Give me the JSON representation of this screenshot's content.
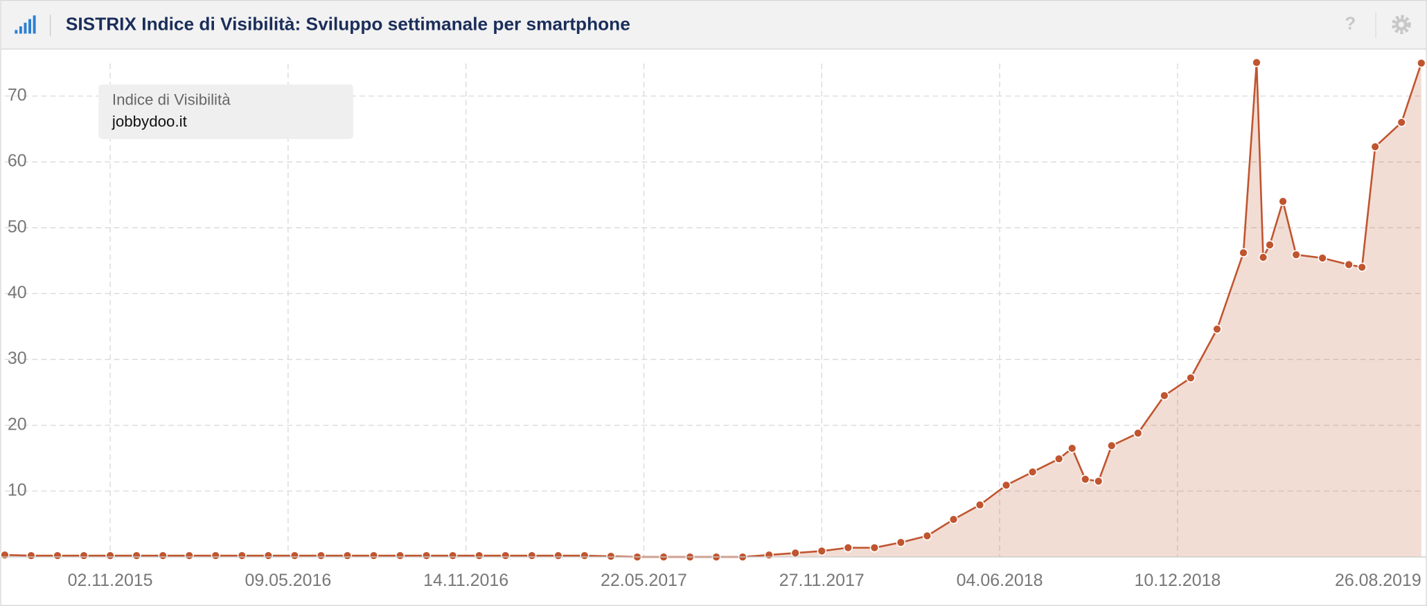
{
  "header": {
    "title": "SISTRIX Indice di Visibilità: Sviluppo settimanale per smartphone",
    "help": "?"
  },
  "chart_data": {
    "type": "area",
    "legend_title": "Indice di Visibilità",
    "x": [
      "13.07.2015",
      "10.08.2015",
      "07.09.2015",
      "05.10.2015",
      "02.11.2015",
      "30.11.2015",
      "28.12.2015",
      "25.01.2016",
      "22.02.2016",
      "21.03.2016",
      "18.04.2016",
      "16.05.2016",
      "13.06.2016",
      "11.07.2016",
      "08.08.2016",
      "05.09.2016",
      "03.10.2016",
      "31.10.2016",
      "28.11.2016",
      "26.12.2016",
      "23.01.2017",
      "20.02.2017",
      "20.03.2017",
      "17.04.2017",
      "15.05.2017",
      "12.06.2017",
      "10.07.2017",
      "07.08.2017",
      "04.09.2017",
      "02.10.2017",
      "30.10.2017",
      "27.11.2017",
      "25.12.2017",
      "22.01.2018",
      "19.02.2018",
      "19.03.2018",
      "16.04.2018",
      "14.05.2018",
      "11.06.2018",
      "09.07.2018",
      "06.08.2018",
      "20.08.2018",
      "03.09.2018",
      "17.09.2018",
      "01.10.2018",
      "29.10.2018",
      "26.11.2018",
      "24.12.2018",
      "21.01.2019",
      "18.02.2019",
      "04.03.2019",
      "11.03.2019",
      "18.03.2019",
      "01.04.2019",
      "15.04.2019",
      "13.05.2019",
      "10.06.2019",
      "24.06.2019",
      "08.07.2019",
      "05.08.2019",
      "26.08.2019"
    ],
    "series": [
      {
        "name": "jobbydoo.it",
        "color": "#c0552f",
        "values": [
          0.3,
          0.2,
          0.2,
          0.2,
          0.2,
          0.2,
          0.2,
          0.2,
          0.2,
          0.2,
          0.2,
          0.2,
          0.2,
          0.2,
          0.2,
          0.2,
          0.2,
          0.2,
          0.2,
          0.2,
          0.2,
          0.2,
          0.2,
          0.1,
          0,
          0,
          0,
          0,
          0,
          0.3,
          0.6,
          0.9,
          1.4,
          1.4,
          2.2,
          3.2,
          5.7,
          7.9,
          10.9,
          12.9,
          14.9,
          16.5,
          11.8,
          11.5,
          16.9,
          18.8,
          24.5,
          27.2,
          34.6,
          46.2,
          75.1,
          45.5,
          47.4,
          54,
          45.9,
          45.4,
          44.4,
          44,
          62.3,
          66,
          75
        ]
      }
    ],
    "xlim": [
      "13.07.2015",
      "26.08.2019"
    ],
    "xticks": [
      "02.11.2015",
      "09.05.2016",
      "14.11.2016",
      "22.05.2017",
      "27.11.2017",
      "04.06.2018",
      "10.12.2018",
      "26.08.2019"
    ],
    "ylim": [
      0,
      77
    ],
    "yticks": [
      10,
      20,
      30,
      40,
      50,
      60,
      70
    ],
    "grid": true
  }
}
